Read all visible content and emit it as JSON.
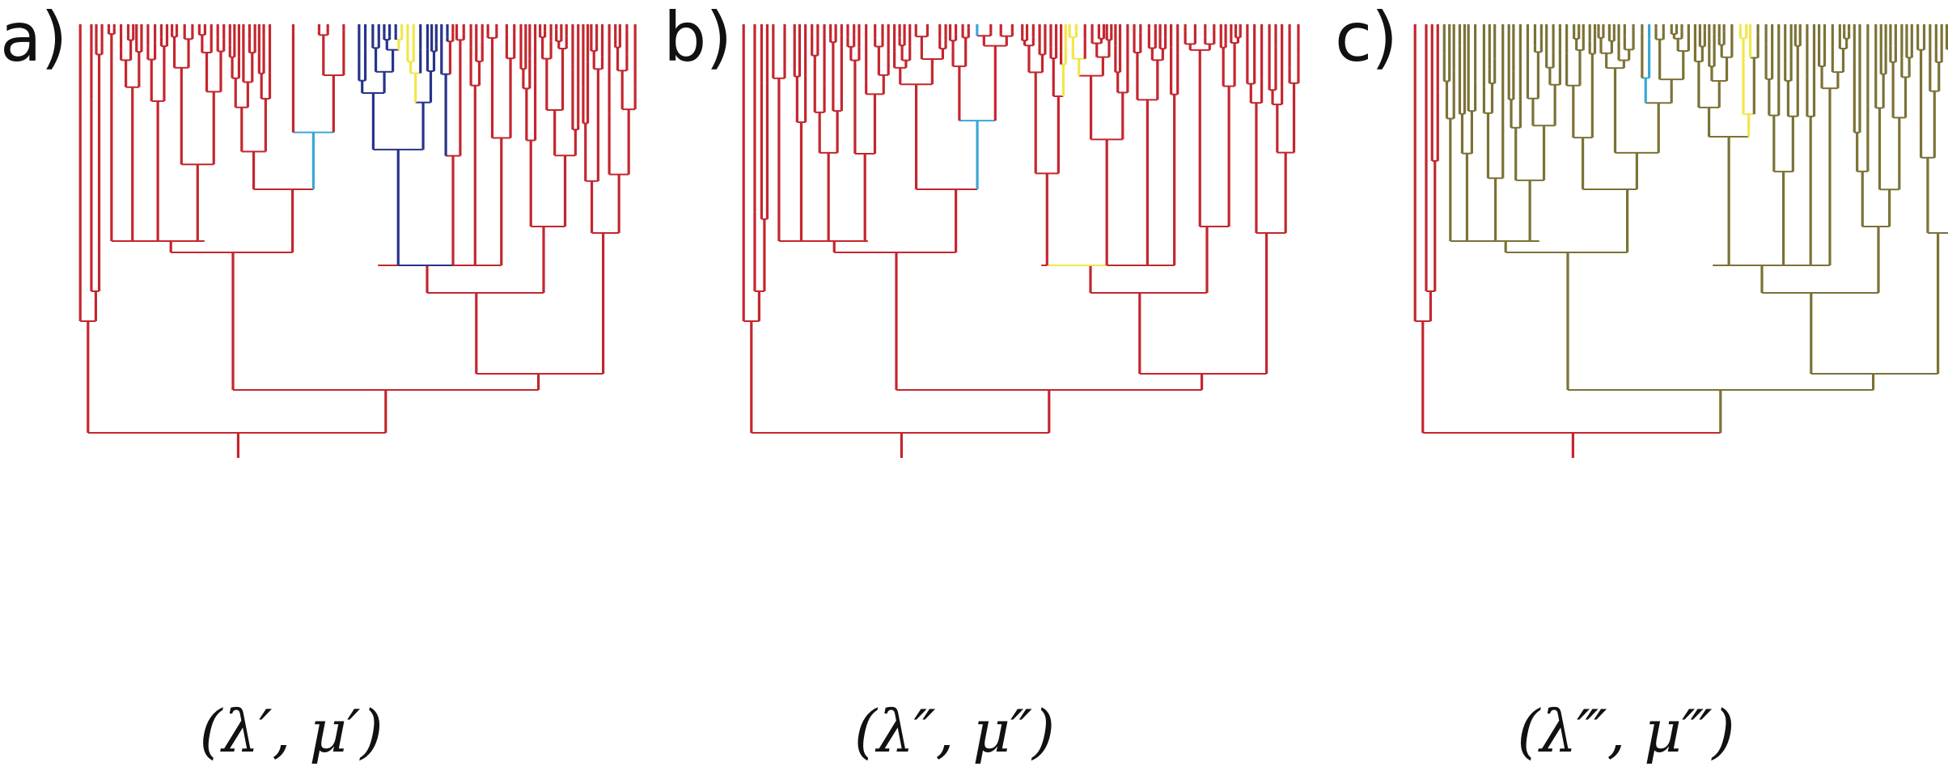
{
  "panels": [
    {
      "id": "a",
      "letter": "a)",
      "rate_label": "(λ′, μ′)",
      "palette": {
        "main": "#c4262e",
        "blue": "#27338a",
        "yellow": "#f2e64a",
        "cyan": "#3aa7d6",
        "green": "#2f9c55"
      },
      "layout_style": "a"
    },
    {
      "id": "b",
      "letter": "b)",
      "rate_label": "(λ″, μ″)",
      "palette": {
        "main": "#c4262e",
        "blue": "#c4262e",
        "yellow": "#f2e64a",
        "cyan": "#3aa7d6",
        "green": "#2f9c55"
      },
      "layout_style": "b"
    },
    {
      "id": "c",
      "letter": "c)",
      "rate_label": "(λ‴, μ‴)",
      "palette": {
        "main": "#7b7236",
        "blue": "#7b7236",
        "yellow": "#f2e64a",
        "cyan": "#3aa7d6",
        "green": "#2f9c55",
        "root": "#c4262e"
      },
      "layout_style": "c"
    }
  ]
}
